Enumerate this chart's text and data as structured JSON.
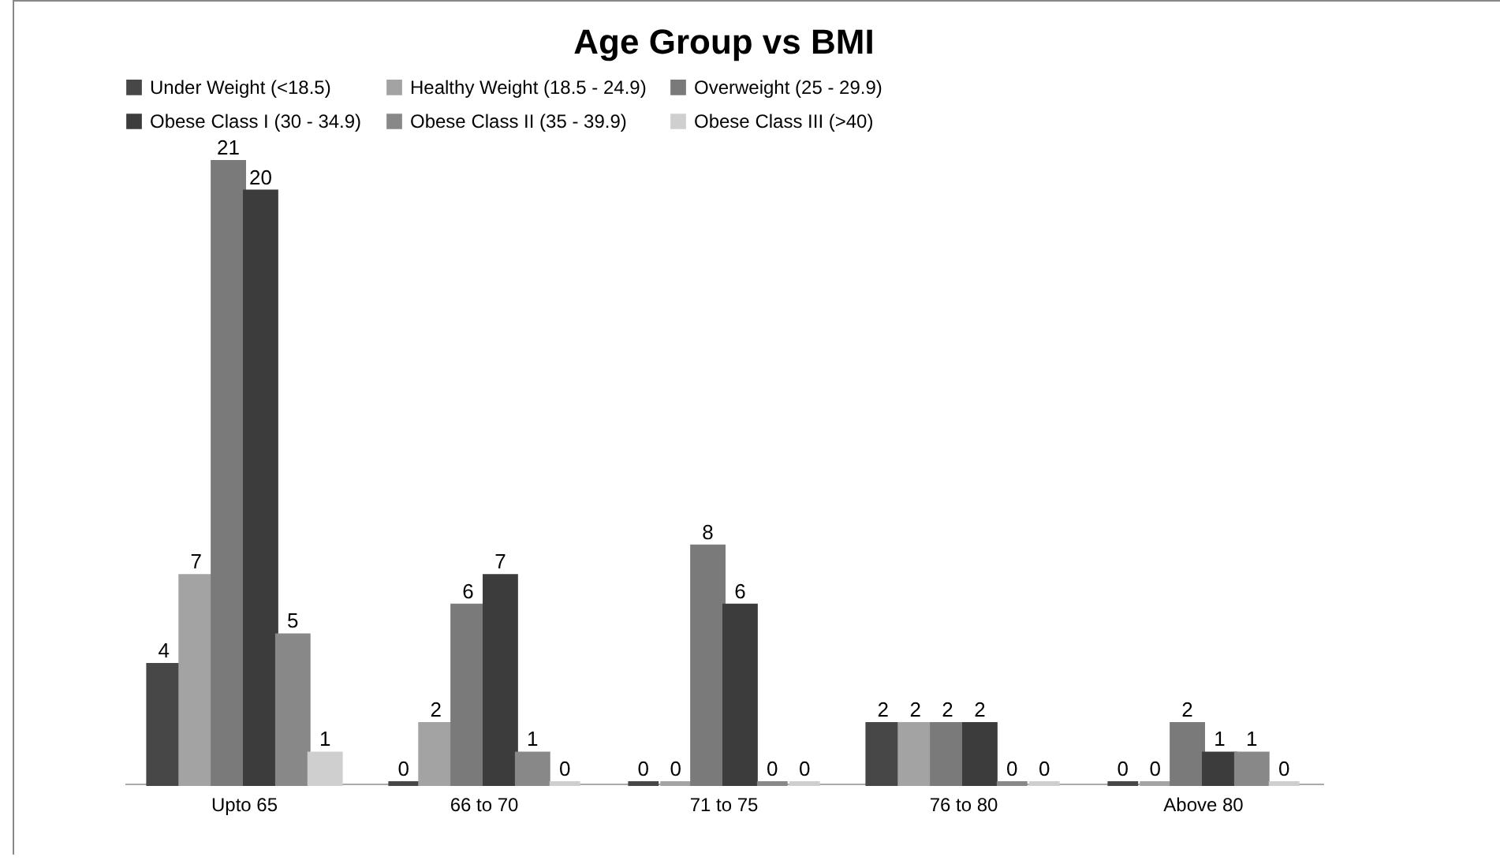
{
  "chart_data": {
    "type": "bar",
    "title": "Age Group vs BMI",
    "categories": [
      "Upto 65",
      "66 to 70",
      "71 to 75",
      "76 to 80",
      "Above 80"
    ],
    "series": [
      {
        "name": "Under Weight (<18.5)",
        "color": "#474747",
        "values": [
          4,
          0,
          0,
          2,
          0
        ]
      },
      {
        "name": "Healthy Weight (18.5 - 24.9)",
        "color": "#a3a3a3",
        "values": [
          7,
          2,
          0,
          2,
          0
        ]
      },
      {
        "name": "Overweight (25 - 29.9)",
        "color": "#7a7a7a",
        "values": [
          21,
          6,
          8,
          2,
          2
        ]
      },
      {
        "name": "Obese Class I (30 - 34.9)",
        "color": "#3c3c3c",
        "values": [
          20,
          7,
          6,
          2,
          1
        ]
      },
      {
        "name": "Obese Class II (35 - 39.9)",
        "color": "#888888",
        "values": [
          5,
          1,
          0,
          0,
          1
        ]
      },
      {
        "name": "Obese Class III (>40)",
        "color": "#cfcfcf",
        "values": [
          1,
          0,
          0,
          0,
          0
        ]
      }
    ],
    "data_labels": true,
    "legend": "top"
  }
}
